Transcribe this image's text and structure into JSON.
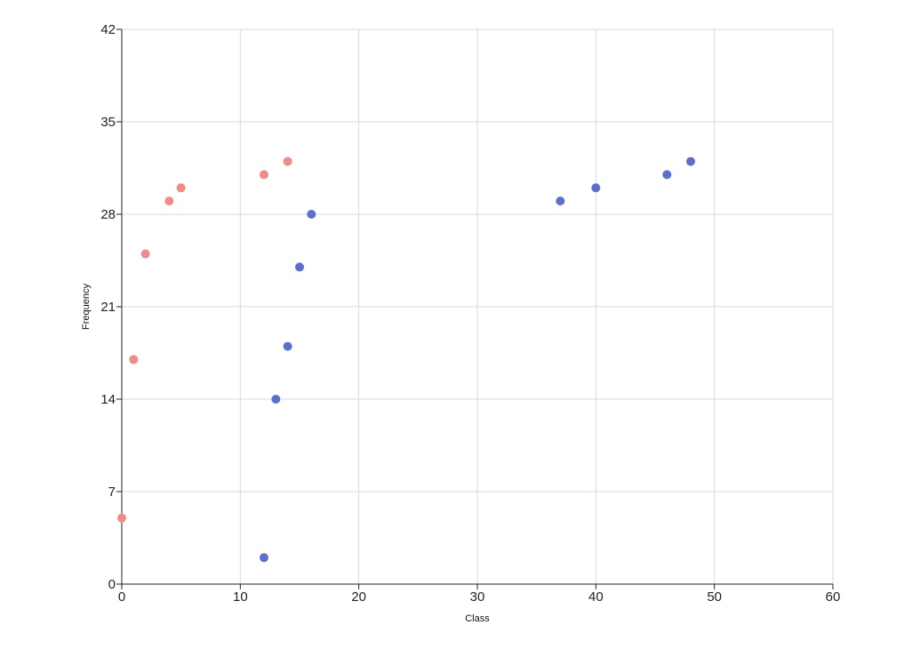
{
  "chart_data": {
    "type": "scatter",
    "xlabel": "Class",
    "ylabel": "Frequency",
    "xlim": [
      0,
      60
    ],
    "ylim": [
      0,
      42
    ],
    "xticks": [
      0,
      10,
      20,
      30,
      40,
      50,
      60
    ],
    "yticks": [
      0,
      7,
      14,
      21,
      28,
      35,
      42
    ],
    "grid": true,
    "series": [
      {
        "color": "#f28b87",
        "points": [
          {
            "x": 0,
            "y": 5
          },
          {
            "x": 1,
            "y": 17
          },
          {
            "x": 2,
            "y": 25
          },
          {
            "x": 4,
            "y": 29
          },
          {
            "x": 5,
            "y": 30
          },
          {
            "x": 12,
            "y": 31
          },
          {
            "x": 14,
            "y": 32
          }
        ]
      },
      {
        "color": "#5b6fd0",
        "points": [
          {
            "x": 12,
            "y": 2
          },
          {
            "x": 13,
            "y": 14
          },
          {
            "x": 14,
            "y": 18
          },
          {
            "x": 15,
            "y": 24
          },
          {
            "x": 16,
            "y": 28
          },
          {
            "x": 37,
            "y": 29
          },
          {
            "x": 40,
            "y": 30
          },
          {
            "x": 46,
            "y": 31
          },
          {
            "x": 48,
            "y": 32
          }
        ]
      }
    ]
  }
}
